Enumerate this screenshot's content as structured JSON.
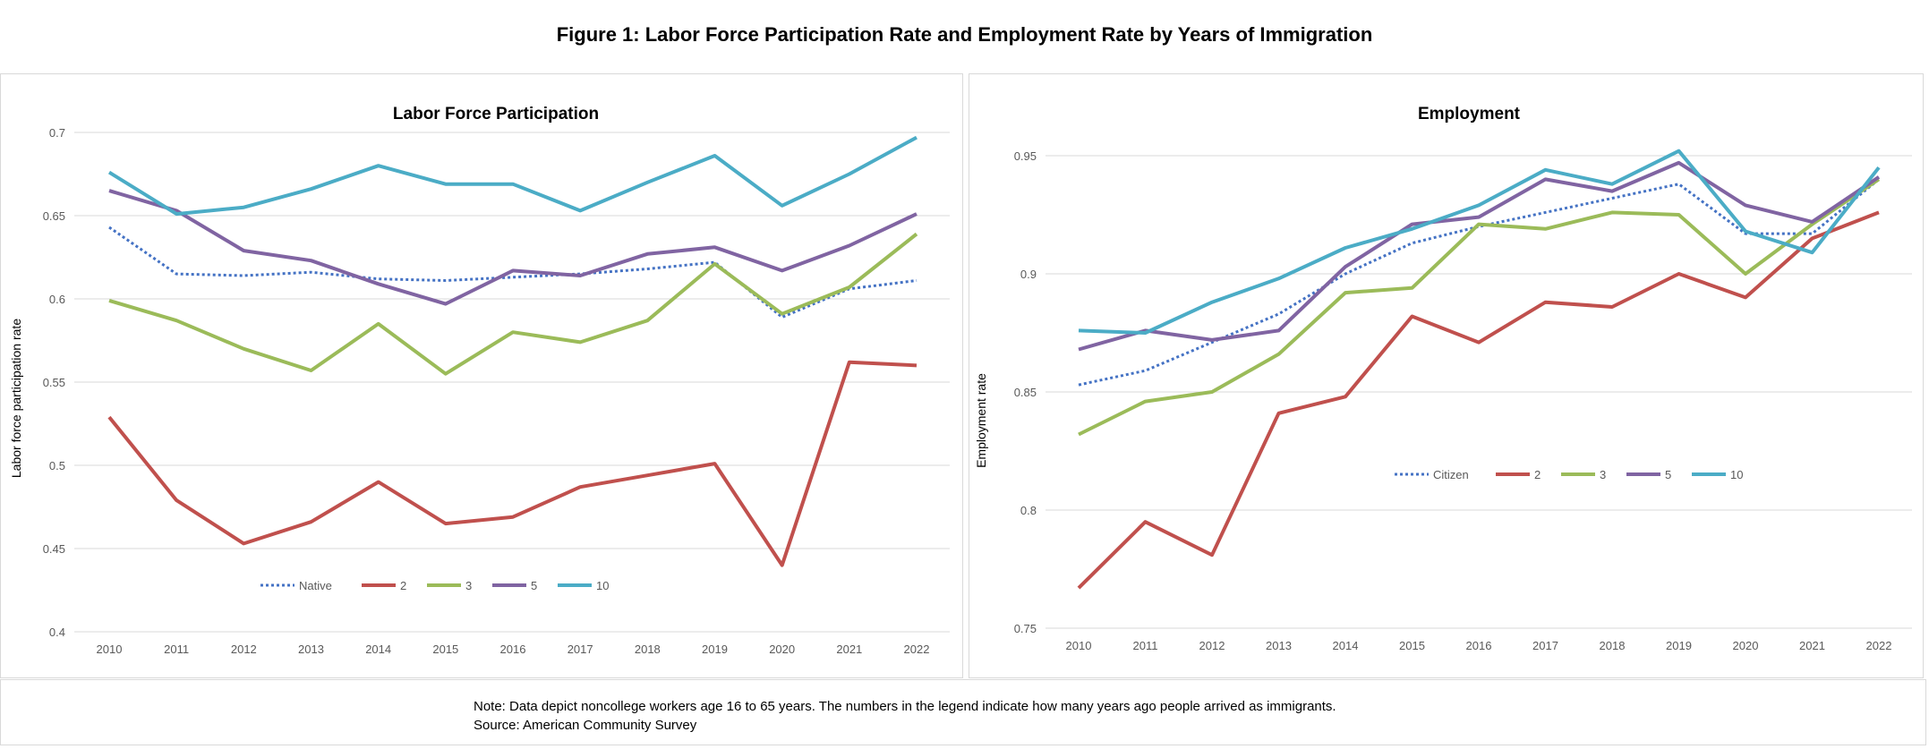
{
  "figure_title": "Figure 1: Labor Force Participation Rate and Employment Rate by Years of Immigration",
  "note_line1": "Note: Data depict noncollege workers age 16 to 65 years. The numbers in the legend indicate how many years ago people arrived as  immigrants.",
  "note_line2": "Source: American Community Survey",
  "colors": {
    "first": "#4472C4",
    "2": "#C0504D",
    "3": "#9BBB59",
    "5": "#8064A2",
    "10": "#4BACC6"
  },
  "chart_data": [
    {
      "type": "line",
      "title": "Labor Force Participation",
      "xlabel": "",
      "ylabel": "Labor force participation rate",
      "ylim": [
        0.4,
        0.7
      ],
      "yticks": [
        "0.4",
        "0.45",
        "0.5",
        "0.55",
        "0.6",
        "0.65",
        "0.7"
      ],
      "grid": true,
      "legend": "bottom-center-inside",
      "x": [
        "2010",
        "2011",
        "2012",
        "2013",
        "2014",
        "2015",
        "2016",
        "2017",
        "2018",
        "2019",
        "2020",
        "2021",
        "2022"
      ],
      "series": [
        {
          "name": "Native",
          "style": "dotted",
          "values": [
            0.643,
            0.615,
            0.614,
            0.616,
            0.612,
            0.611,
            0.613,
            0.615,
            0.618,
            0.622,
            0.589,
            0.606,
            0.611
          ]
        },
        {
          "name": "2",
          "values": [
            0.529,
            0.479,
            0.453,
            0.466,
            0.49,
            0.465,
            0.469,
            0.487,
            0.494,
            0.501,
            0.44,
            0.562,
            0.56
          ]
        },
        {
          "name": "3",
          "values": [
            0.599,
            0.587,
            0.57,
            0.557,
            0.585,
            0.555,
            0.58,
            0.574,
            0.587,
            0.621,
            0.591,
            0.607,
            0.639
          ]
        },
        {
          "name": "5",
          "values": [
            0.665,
            0.653,
            0.629,
            0.623,
            0.609,
            0.597,
            0.617,
            0.614,
            0.627,
            0.631,
            0.617,
            0.632,
            0.651
          ]
        },
        {
          "name": "10",
          "values": [
            0.676,
            0.651,
            0.655,
            0.666,
            0.68,
            0.669,
            0.669,
            0.653,
            0.67,
            0.686,
            0.656,
            0.675,
            0.697
          ]
        }
      ]
    },
    {
      "type": "line",
      "title": "Employment",
      "xlabel": "",
      "ylabel": "Employment rate",
      "ylim": [
        0.75,
        0.95
      ],
      "yticks": [
        "0.75",
        "0.8",
        "0.85",
        "0.9",
        "0.95"
      ],
      "grid": true,
      "legend": "center-right-inside",
      "x": [
        "2010",
        "2011",
        "2012",
        "2013",
        "2014",
        "2015",
        "2016",
        "2017",
        "2018",
        "2019",
        "2020",
        "2021",
        "2022"
      ],
      "series": [
        {
          "name": "Citizen",
          "style": "dotted",
          "values": [
            0.853,
            0.859,
            0.871,
            0.883,
            0.9,
            0.913,
            0.92,
            0.926,
            0.932,
            0.938,
            0.917,
            0.917,
            0.94
          ]
        },
        {
          "name": "2",
          "values": [
            0.767,
            0.795,
            0.781,
            0.841,
            0.848,
            0.882,
            0.871,
            0.888,
            0.886,
            0.9,
            0.89,
            0.915,
            0.926
          ]
        },
        {
          "name": "3",
          "values": [
            0.832,
            0.846,
            0.85,
            0.866,
            0.892,
            0.894,
            0.921,
            0.919,
            0.926,
            0.925,
            0.9,
            0.921,
            0.94
          ]
        },
        {
          "name": "5",
          "values": [
            0.868,
            0.876,
            0.872,
            0.876,
            0.903,
            0.921,
            0.924,
            0.94,
            0.935,
            0.947,
            0.929,
            0.922,
            0.941
          ]
        },
        {
          "name": "10",
          "values": [
            0.876,
            0.875,
            0.888,
            0.898,
            0.911,
            0.919,
            0.929,
            0.944,
            0.938,
            0.952,
            0.918,
            0.909,
            0.945
          ]
        }
      ]
    }
  ]
}
